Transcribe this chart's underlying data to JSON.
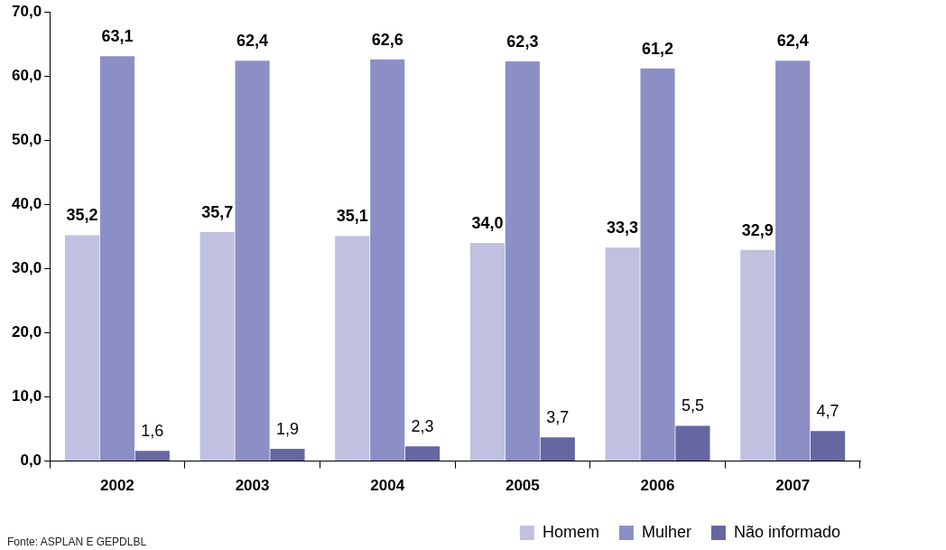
{
  "chart_data": {
    "type": "bar",
    "categories": [
      "2002",
      "2003",
      "2004",
      "2005",
      "2006",
      "2007"
    ],
    "series": [
      {
        "name": "Homem",
        "color": "#c0c0e0",
        "values": [
          35.2,
          35.7,
          35.1,
          34.0,
          33.3,
          32.9
        ],
        "value_labels": [
          "35,2",
          "35,7",
          "35,1",
          "34,0",
          "33,3",
          "32,9"
        ]
      },
      {
        "name": "Mulher",
        "color": "#8b8fc6",
        "values": [
          63.1,
          62.4,
          62.6,
          62.3,
          61.2,
          62.4
        ],
        "value_labels": [
          "63,1",
          "62,4",
          "62,6",
          "62,3",
          "61,2",
          "62,4"
        ]
      },
      {
        "name": "Não informado",
        "color": "#6667a0",
        "values": [
          1.6,
          1.9,
          2.3,
          3.7,
          5.5,
          4.7
        ],
        "value_labels": [
          "1,6",
          "1,9",
          "2,3",
          "3,7",
          "5,5",
          "4,7"
        ]
      }
    ],
    "ylim": [
      0,
      70
    ],
    "yticks": [
      {
        "value": 0,
        "label": "0,0"
      },
      {
        "value": 10,
        "label": "10,0"
      },
      {
        "value": 20,
        "label": "20,0"
      },
      {
        "value": 30,
        "label": "30,0"
      },
      {
        "value": 40,
        "label": "40,0"
      },
      {
        "value": 50,
        "label": "50,0"
      },
      {
        "value": 60,
        "label": "60,0"
      },
      {
        "value": 70,
        "label": "70,0"
      }
    ],
    "grid": false,
    "legend": "bottom right",
    "annotations": [
      "Fonte: ASPLAN E GEPDLBL"
    ]
  }
}
